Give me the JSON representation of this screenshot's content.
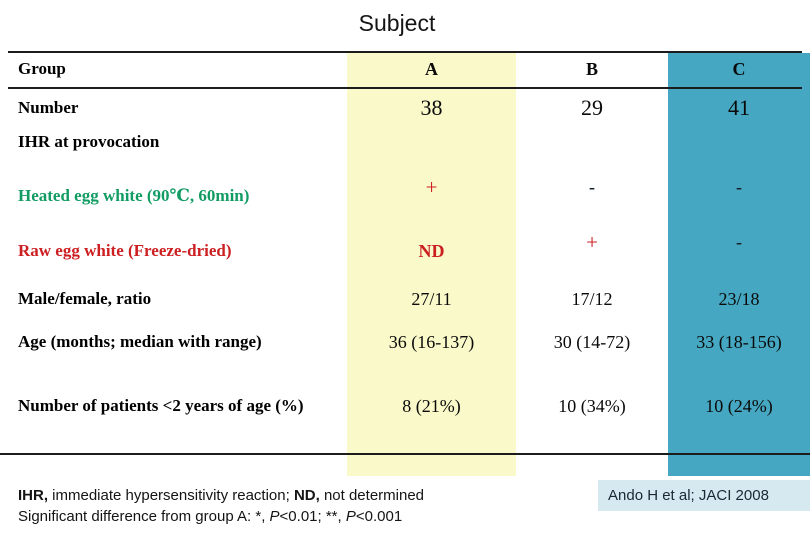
{
  "title": "Subject",
  "chart_data": {
    "type": "table",
    "title": "Subject",
    "columns": [
      "Group",
      "A",
      "B",
      "C"
    ],
    "rows": [
      [
        "Number",
        "38",
        "29",
        "41"
      ],
      [
        "IHR at provocation",
        "",
        "",
        ""
      ],
      [
        "Heated egg white (90℃, 60min)",
        "+",
        "-",
        "-"
      ],
      [
        "Raw egg white (Freeze-dried)",
        "ND",
        "+",
        "-"
      ],
      [
        "Male/female, ratio",
        "27/11",
        "17/12",
        "23/18"
      ],
      [
        "Age (months; median with range)",
        "36 (16-137)",
        "30 (14-72)",
        "33 (18-156)"
      ],
      [
        "Number of patients <2 years of age (%)",
        "8 (21%)",
        "10 (34%)",
        "10 (24%)"
      ]
    ],
    "column_band_colors": {
      "A": "#f9f9c9",
      "B": "none",
      "C": "#45a7c1"
    }
  },
  "footnote": {
    "l1_bold1": "IHR,",
    "l1_text1": " immediate hypersensitivity reaction; ",
    "l1_bold2": "ND,",
    "l1_text2": " not determined",
    "l2_text1": "Significant difference from group A: *, ",
    "l2_italic1": "P",
    "l2_text2": "<0.01; **, ",
    "l2_italic2": "P",
    "l2_text3": "<0.001"
  },
  "citation": "Ando H et al; JACI 2008",
  "colors": {
    "band_a": "#f9f9c9",
    "band_c": "#45a7c1",
    "citation_bg": "#d6e9f1",
    "heated_label_green": "#129c63",
    "raw_label_red": "#cc1f22",
    "symbol_red": "#cc1f22"
  }
}
